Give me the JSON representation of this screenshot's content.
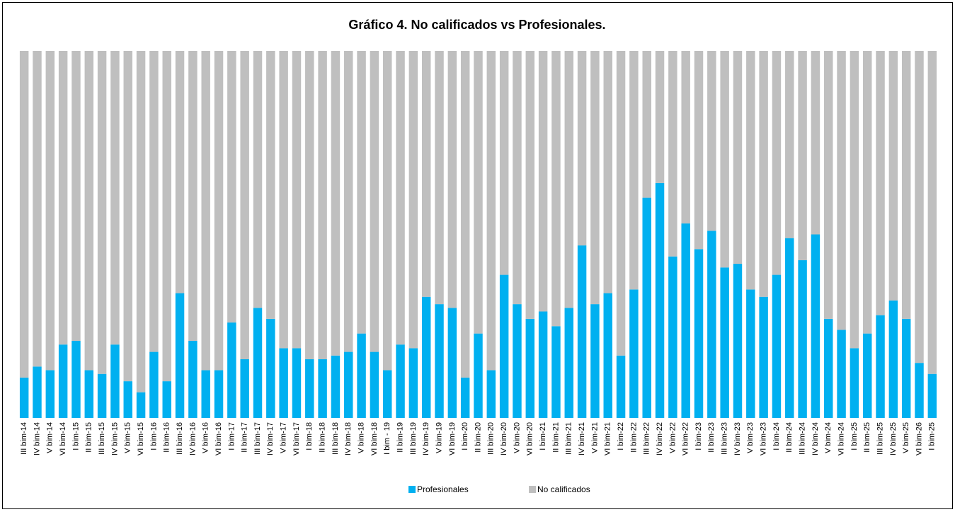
{
  "chart_data": {
    "type": "stacked_bar",
    "title": "Gráfico 4. No calificados vs Profesionales.",
    "categories": [
      "III bim-14",
      "IV bim-14",
      "V bim-14",
      "VI bim-14",
      "I bim-15",
      "II bim-15",
      "III bim-15",
      "IV bim-15",
      "V bim-15",
      "VI bim-15",
      "I bim-16",
      "II bim-16",
      "III bim-16",
      "IV bim-16",
      "V bim-16",
      "VI bim-16",
      "I bim-17",
      "II bim-17",
      "III bim-17",
      "IV bim-17",
      "V bim-17",
      "VI bim-17",
      "I bim-18",
      "II bim-18",
      "III bim-18",
      "IV bim-18",
      "V bim-18",
      "VI bim-18",
      "I bim - 19",
      "II bim-19",
      "III bim-19",
      "IV bim-19",
      "V bim-19",
      "VI bim-19",
      "I bim-20",
      "II bim-20",
      "III bim-20",
      "IV bim-20",
      "V bim-20",
      "VI bim-20",
      "I bim-21",
      "II bim-21",
      "III bim-21",
      "IV bim-21",
      "V bim-21",
      "VI bim-21",
      "I bim-22",
      "II bim-22",
      "III bim-22",
      "IV bim-22",
      "V bim-22",
      "VI bim-22",
      "I bim-23",
      "II bim-23",
      "III bim-23",
      "IV bim-23",
      "V bim-23",
      "VI bim-23",
      "I bim-24",
      "II bim-24",
      "III bim-24",
      "IV bim-24",
      "V bim-24",
      "VI bim-24",
      "I bim-25",
      "II bim-25",
      "III bim-25",
      "IV bim-25",
      "V bim-25",
      "VI bim-26",
      "I bim-25"
    ],
    "series": [
      {
        "name": "Profesionales",
        "color": "#00b0f0",
        "values": [
          11,
          14,
          13,
          20,
          21,
          13,
          12,
          20,
          10,
          7,
          18,
          10,
          34,
          21,
          13,
          13,
          26,
          16,
          30,
          27,
          19,
          19,
          16,
          16,
          17,
          18,
          23,
          18,
          13,
          20,
          19,
          33,
          31,
          30,
          11,
          23,
          13,
          39,
          31,
          27,
          29,
          25,
          30,
          47,
          31,
          34,
          17,
          35,
          60,
          64,
          44,
          53,
          46,
          51,
          41,
          42,
          35,
          33,
          39,
          49,
          43,
          50,
          27,
          24,
          19,
          23,
          28,
          32,
          27,
          15,
          12
        ]
      },
      {
        "name": "No calificados",
        "color": "#bfbfbf",
        "values": [
          89,
          86,
          87,
          80,
          79,
          87,
          88,
          80,
          90,
          93,
          82,
          90,
          66,
          79,
          87,
          87,
          74,
          84,
          70,
          73,
          81,
          81,
          84,
          84,
          83,
          82,
          77,
          82,
          87,
          80,
          81,
          67,
          69,
          70,
          89,
          77,
          87,
          61,
          69,
          73,
          71,
          75,
          70,
          53,
          69,
          66,
          83,
          65,
          40,
          36,
          56,
          47,
          54,
          49,
          59,
          58,
          65,
          67,
          61,
          51,
          57,
          50,
          73,
          76,
          81,
          77,
          72,
          68,
          73,
          85,
          88
        ]
      }
    ],
    "ylim": [
      0,
      100
    ],
    "legend": "bottom"
  }
}
